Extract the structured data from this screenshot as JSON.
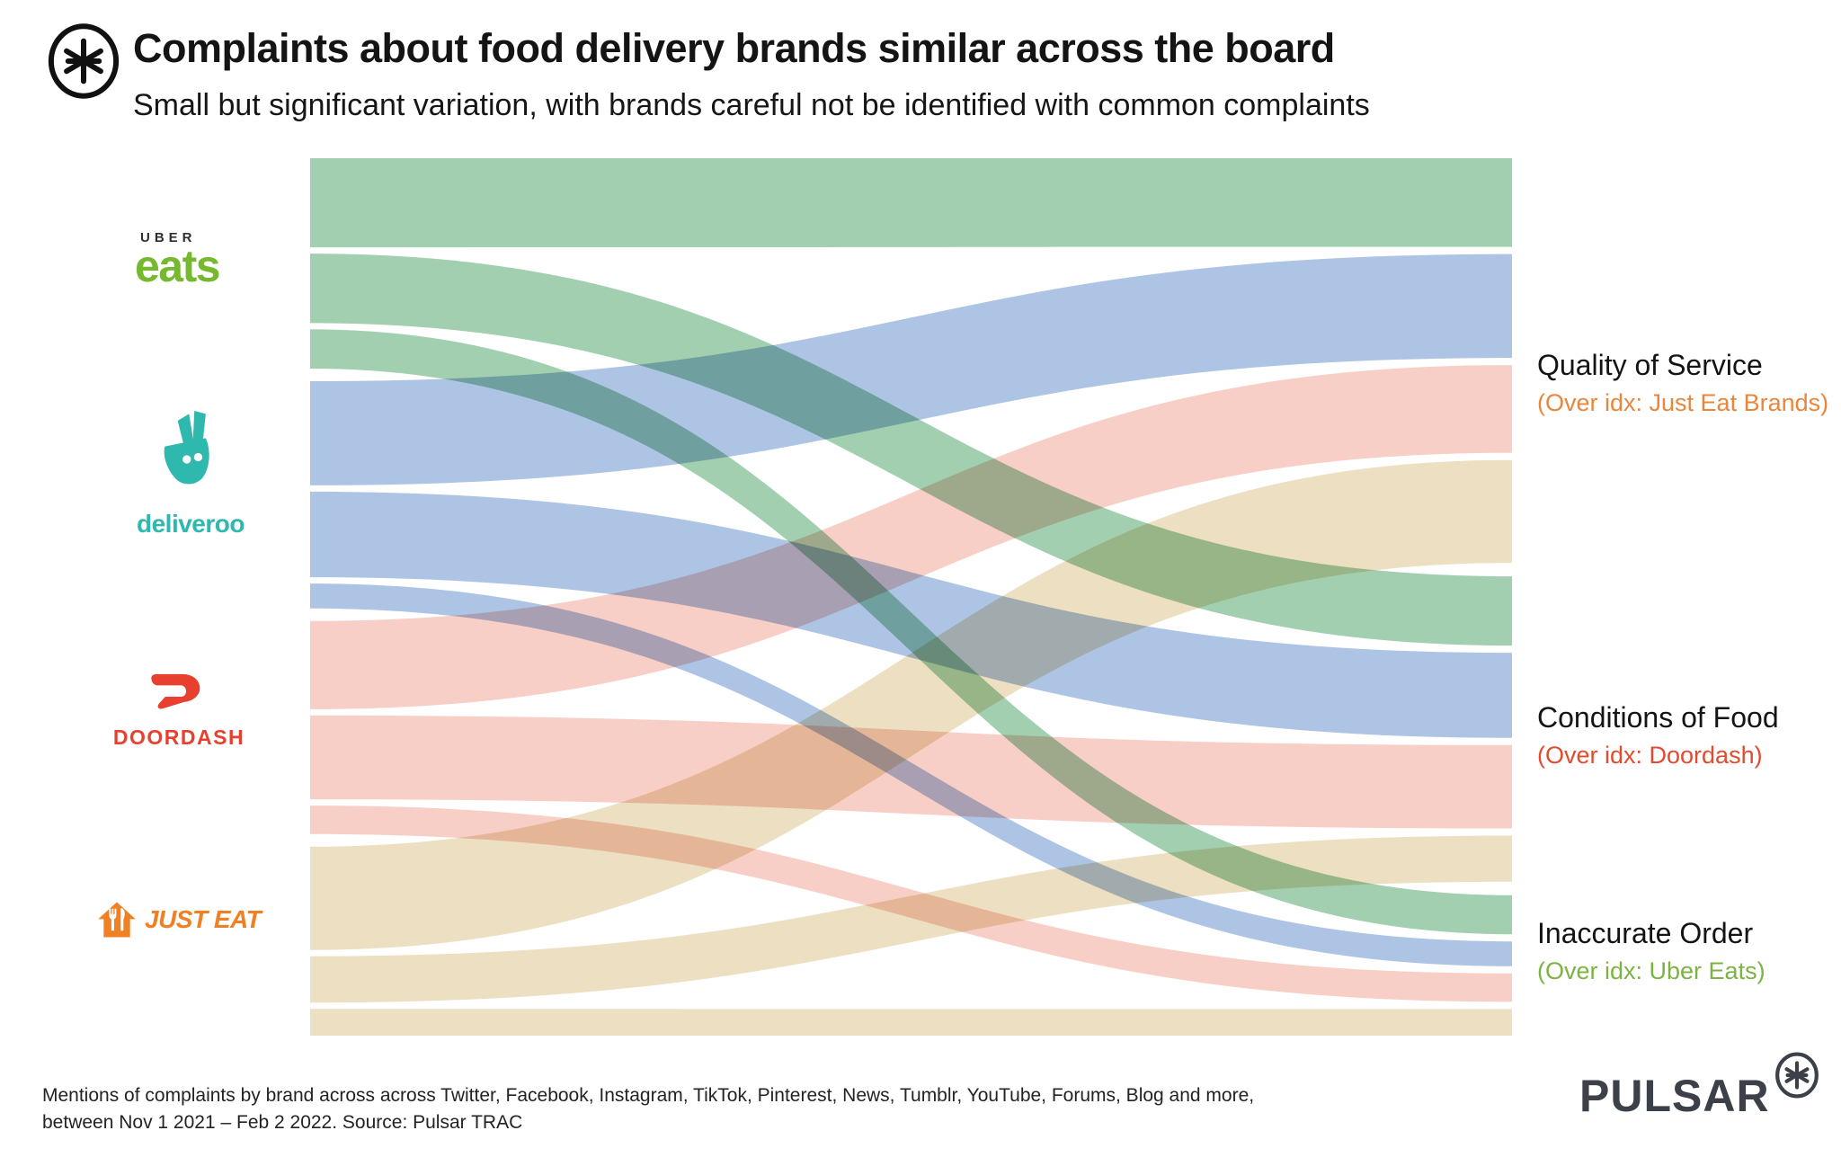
{
  "header": {
    "title": "Complaints about food delivery brands similar across the board",
    "subtitle": "Small but significant variation, with brands careful not be identified with common complaints"
  },
  "brands": [
    {
      "name": "Uber Eats",
      "wordmark_top": "UBER",
      "wordmark": "eats",
      "color": "#76b82e"
    },
    {
      "name": "Deliveroo",
      "wordmark": "deliveroo",
      "color": "#2fb8ae"
    },
    {
      "name": "DoorDash",
      "wordmark": "DOORDASH",
      "color": "#e8402e"
    },
    {
      "name": "Just Eat",
      "wordmark": "JUST EAT",
      "color": "#ef8024"
    }
  ],
  "categories": [
    {
      "label": "Quality of Service",
      "note": "(Over idx: Just Eat Brands)",
      "note_color": "#e8863c"
    },
    {
      "label": "Conditions of Food",
      "note": "(Over idx: Doordash)",
      "note_color": "#e14b2f"
    },
    {
      "label": "Inaccurate Order",
      "note": "(Over idx: Uber Eats)",
      "note_color": "#7cb342"
    }
  ],
  "chart_data": {
    "type": "sankey",
    "title": "Complaints about food delivery brands similar across the board",
    "unit": "relative flow thickness (share of mentions)",
    "sources": [
      "Uber Eats",
      "Deliveroo",
      "DoorDash",
      "Just Eat"
    ],
    "targets": [
      "Quality of Service",
      "Conditions of Food",
      "Inaccurate Order"
    ],
    "flows": [
      {
        "source": "Uber Eats",
        "target": "Quality of Service",
        "value": 100
      },
      {
        "source": "Uber Eats",
        "target": "Conditions of Food",
        "value": 78
      },
      {
        "source": "Uber Eats",
        "target": "Inaccurate Order",
        "value": 44
      },
      {
        "source": "Deliveroo",
        "target": "Quality of Service",
        "value": 117
      },
      {
        "source": "Deliveroo",
        "target": "Conditions of Food",
        "value": 96
      },
      {
        "source": "Deliveroo",
        "target": "Inaccurate Order",
        "value": 28
      },
      {
        "source": "DoorDash",
        "target": "Quality of Service",
        "value": 99
      },
      {
        "source": "DoorDash",
        "target": "Conditions of Food",
        "value": 94
      },
      {
        "source": "DoorDash",
        "target": "Inaccurate Order",
        "value": 32
      },
      {
        "source": "Just Eat",
        "target": "Quality of Service",
        "value": 116
      },
      {
        "source": "Just Eat",
        "target": "Conditions of Food",
        "value": 52
      },
      {
        "source": "Just Eat",
        "target": "Inaccurate Order",
        "value": 30
      }
    ],
    "flow_colors": {
      "Uber Eats": "#a3cfb1",
      "Deliveroo": "#aec4e4",
      "DoorDash": "#f8cfc7",
      "Just Eat": "#ecdfc2"
    },
    "legend_position": "left-brands / right-categories",
    "grid": false
  },
  "footer": {
    "line1": "Mentions of complaints by brand across across Twitter, Facebook, Instagram, TikTok, Pinterest, News, Tumblr, YouTube, Forums, Blog and more,",
    "line2": "between Nov 1 2021 – Feb  2 2022. Source: Pulsar TRAC"
  },
  "publisher": {
    "wordmark": "PULSAR"
  }
}
